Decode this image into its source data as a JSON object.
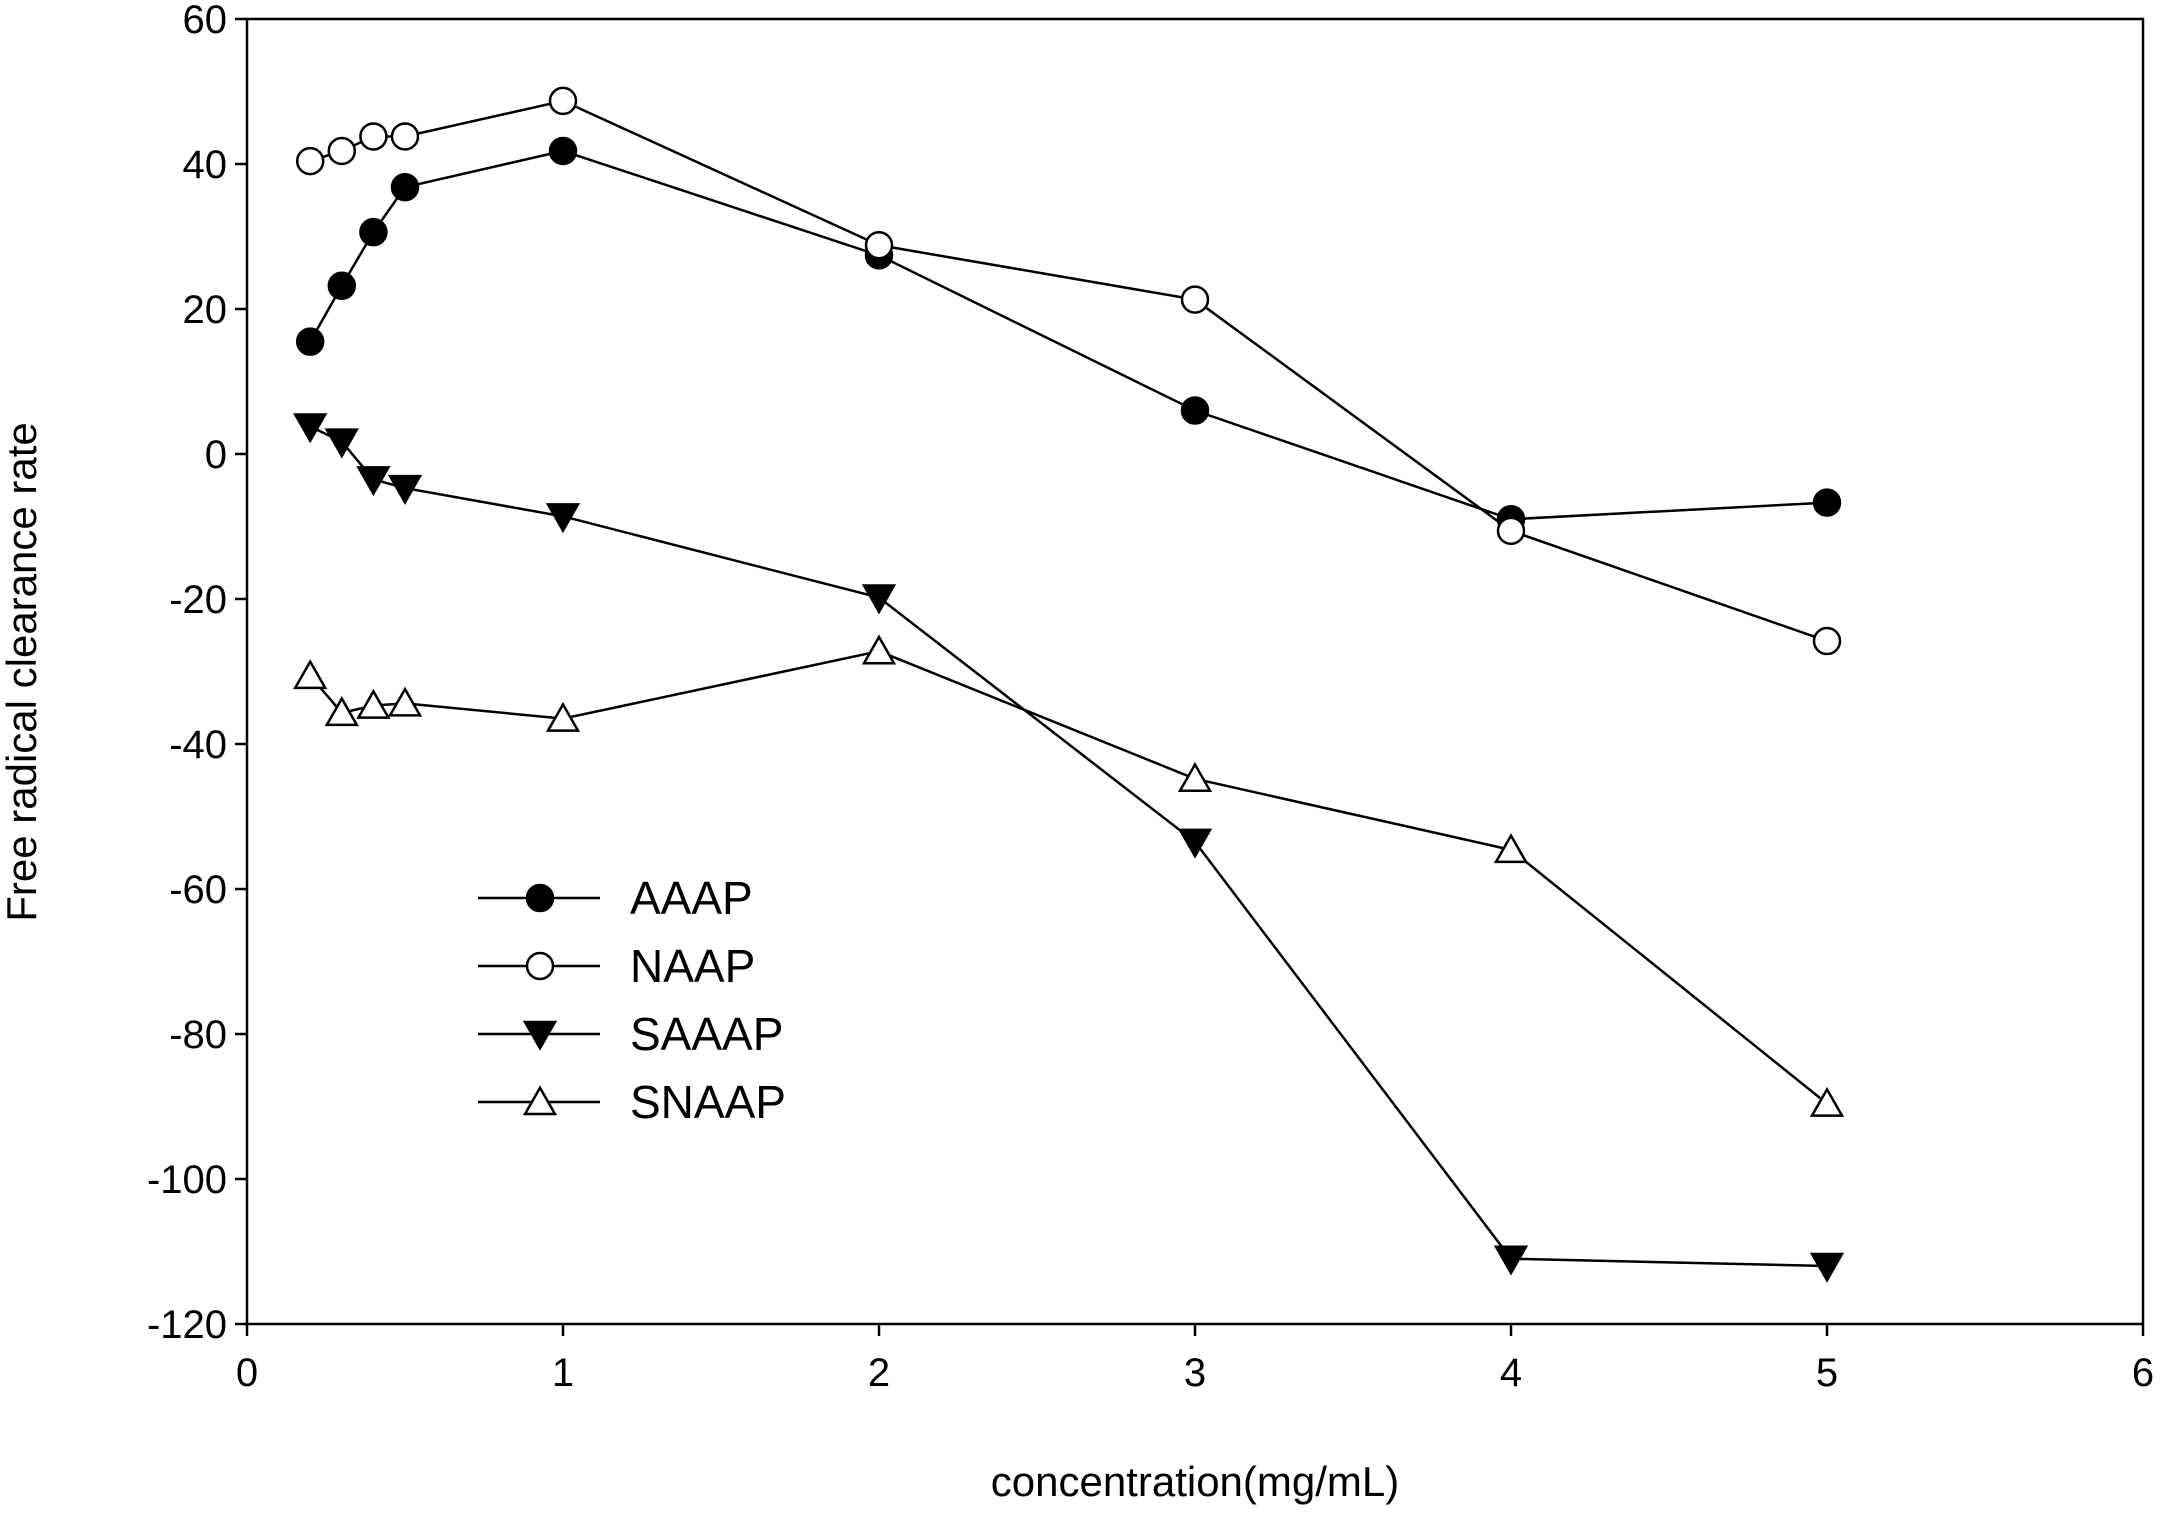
{
  "chart_data": {
    "type": "line",
    "title": "",
    "xlabel": "concentration(mg/mL)",
    "ylabel": "Free radical clearance rate",
    "xlim": [
      0,
      6
    ],
    "ylim": [
      -120,
      60
    ],
    "xticks": [
      0,
      1,
      2,
      3,
      4,
      5,
      6
    ],
    "yticks": [
      60,
      40,
      20,
      0,
      -20,
      -40,
      -60,
      -80,
      -100,
      -120
    ],
    "xtick_labels": [
      "0",
      "1",
      "2",
      "3",
      "4",
      "5",
      "6"
    ],
    "ytick_labels": [
      "60",
      "40",
      "20",
      "0",
      "-20",
      "-40",
      "-60",
      "-80",
      "-100",
      "-120"
    ],
    "grid": false,
    "legend_position": "lower-left",
    "series": [
      {
        "name": "AAAP",
        "marker": "circle-filled",
        "x": [
          0.2,
          0.3,
          0.4,
          0.5,
          1,
          2,
          3,
          4,
          5
        ],
        "y": [
          15.5,
          23.2,
          30.6,
          36.8,
          41.8,
          27.4,
          6.0,
          -9.0,
          -6.7
        ]
      },
      {
        "name": "NAAP",
        "marker": "circle-open",
        "x": [
          0.2,
          0.3,
          0.4,
          0.5,
          1,
          2,
          3,
          4,
          5
        ],
        "y": [
          40.4,
          41.8,
          43.8,
          43.8,
          48.7,
          28.8,
          21.3,
          -10.6,
          -25.8
        ]
      },
      {
        "name": "SAAAP",
        "marker": "triangle-down-filled",
        "x": [
          0.2,
          0.3,
          0.4,
          0.5,
          1,
          2,
          3,
          4,
          5
        ],
        "y": [
          3.8,
          1.7,
          -3.5,
          -4.7,
          -8.6,
          -19.8,
          -53.5,
          -111.0,
          -112.0
        ]
      },
      {
        "name": "SNAAP",
        "marker": "triangle-up-open",
        "x": [
          0.2,
          0.3,
          0.4,
          0.5,
          1,
          2,
          3,
          4,
          5
        ],
        "y": [
          -30.6,
          -35.7,
          -34.7,
          -34.4,
          -36.5,
          -27.2,
          -44.8,
          -54.6,
          -89.6
        ]
      }
    ]
  }
}
